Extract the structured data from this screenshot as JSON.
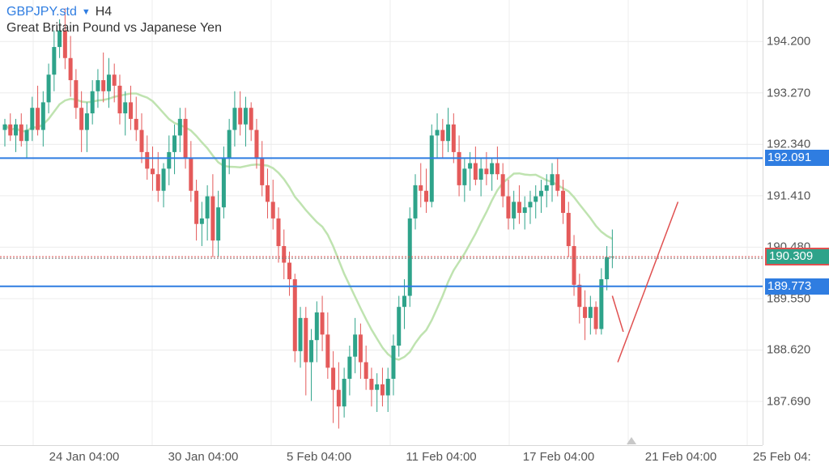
{
  "header": {
    "symbol": "GBPJPY.std",
    "timeframe": "H4",
    "description": "Great Britain Pound vs Japanese Yen"
  },
  "icons": {
    "timeframe_dropdown": "triangle-down-icon",
    "scroll_marker": "triangle-up-icon"
  },
  "colors": {
    "up": "#2ea38a",
    "down": "#e45a5a",
    "ma": "#bfe3b0",
    "hline": "#2f7de1",
    "current": "#e05050",
    "grid": "#ececec"
  },
  "price_axis": {
    "ticks": [
      "194.200",
      "193.270",
      "192.340",
      "191.410",
      "190.480",
      "189.550",
      "188.620",
      "187.690"
    ]
  },
  "time_axis": {
    "labels": [
      "24 Jan 04:00",
      "30 Jan 04:00",
      "5 Feb 04:00",
      "11 Feb 04:00",
      "17 Feb 04:00",
      "21 Feb 04:00",
      "25 Feb 04:"
    ]
  },
  "levels": {
    "upper": "192.091",
    "lower": "189.773",
    "current": "190.309"
  },
  "chart_data": {
    "type": "candlestick",
    "ylim": [
      186.9,
      194.95
    ],
    "yticks": [
      194.2,
      193.27,
      192.34,
      191.41,
      190.48,
      189.55,
      188.62,
      187.69
    ],
    "xlabels": [
      "24 Jan 04:00",
      "30 Jan 04:00",
      "5 Feb 04:00",
      "11 Feb 04:00",
      "17 Feb 04:00",
      "21 Feb 04:00",
      "25 Feb 04:"
    ],
    "horizontal_lines": [
      192.091,
      189.773
    ],
    "current_price": 190.309,
    "ohlc": [
      [
        192.6,
        192.8,
        192.3,
        192.7
      ],
      [
        192.7,
        192.9,
        192.4,
        192.5
      ],
      [
        192.5,
        192.8,
        192.2,
        192.7
      ],
      [
        192.7,
        192.9,
        192.3,
        192.4
      ],
      [
        192.4,
        192.7,
        192.1,
        192.6
      ],
      [
        192.6,
        193.2,
        192.4,
        193.0
      ],
      [
        193.0,
        193.4,
        192.5,
        192.6
      ],
      [
        192.6,
        193.3,
        192.3,
        193.1
      ],
      [
        193.1,
        193.8,
        192.9,
        193.6
      ],
      [
        193.6,
        194.4,
        193.3,
        194.1
      ],
      [
        194.1,
        194.6,
        193.9,
        194.4
      ],
      [
        194.4,
        194.8,
        193.7,
        193.9
      ],
      [
        193.9,
        194.3,
        193.2,
        193.5
      ],
      [
        193.5,
        193.7,
        192.8,
        193.0
      ],
      [
        193.0,
        193.3,
        192.2,
        192.6
      ],
      [
        192.6,
        193.1,
        192.2,
        192.9
      ],
      [
        192.9,
        193.5,
        192.7,
        193.3
      ],
      [
        193.3,
        193.7,
        193.0,
        193.5
      ],
      [
        193.5,
        194.0,
        193.1,
        193.3
      ],
      [
        193.3,
        193.9,
        193.0,
        193.6
      ],
      [
        193.6,
        193.8,
        193.1,
        193.4
      ],
      [
        193.4,
        193.6,
        192.7,
        192.9
      ],
      [
        192.9,
        193.3,
        192.5,
        193.1
      ],
      [
        193.1,
        193.4,
        192.6,
        192.8
      ],
      [
        192.8,
        193.2,
        192.4,
        192.6
      ],
      [
        192.6,
        192.9,
        192.0,
        192.2
      ],
      [
        192.2,
        192.5,
        191.7,
        191.9
      ],
      [
        191.9,
        192.3,
        191.5,
        191.8
      ],
      [
        191.8,
        192.2,
        191.3,
        191.5
      ],
      [
        191.5,
        192.0,
        191.2,
        191.9
      ],
      [
        191.9,
        192.5,
        191.6,
        192.2
      ],
      [
        192.2,
        192.7,
        191.8,
        192.5
      ],
      [
        192.5,
        193.0,
        192.2,
        192.8
      ],
      [
        192.8,
        193.0,
        191.9,
        192.1
      ],
      [
        192.1,
        192.4,
        191.3,
        191.5
      ],
      [
        191.5,
        191.7,
        190.6,
        190.9
      ],
      [
        190.9,
        191.3,
        190.5,
        191.0
      ],
      [
        191.0,
        191.6,
        190.6,
        191.4
      ],
      [
        191.4,
        191.8,
        190.3,
        190.6
      ],
      [
        190.6,
        191.5,
        190.3,
        191.2
      ],
      [
        191.2,
        192.3,
        191.0,
        192.1
      ],
      [
        192.1,
        192.8,
        191.8,
        192.6
      ],
      [
        192.6,
        193.3,
        192.3,
        193.0
      ],
      [
        193.0,
        193.3,
        192.5,
        192.7
      ],
      [
        192.7,
        193.2,
        192.3,
        193.0
      ],
      [
        193.0,
        193.1,
        192.4,
        192.6
      ],
      [
        192.6,
        192.8,
        191.9,
        192.1
      ],
      [
        192.1,
        192.4,
        191.4,
        191.6
      ],
      [
        191.6,
        191.9,
        191.0,
        191.3
      ],
      [
        191.3,
        191.7,
        190.8,
        191.0
      ],
      [
        191.0,
        191.2,
        190.2,
        190.5
      ],
      [
        190.5,
        190.8,
        189.9,
        190.2
      ],
      [
        190.2,
        190.4,
        189.6,
        189.9
      ],
      [
        189.9,
        190.0,
        188.4,
        188.6
      ],
      [
        188.6,
        189.4,
        188.3,
        189.2
      ],
      [
        189.2,
        189.4,
        187.8,
        188.4
      ],
      [
        188.4,
        189.0,
        187.7,
        188.8
      ],
      [
        188.8,
        189.5,
        188.4,
        189.3
      ],
      [
        189.3,
        189.6,
        188.6,
        188.9
      ],
      [
        188.9,
        189.3,
        188.1,
        188.3
      ],
      [
        188.3,
        188.6,
        187.3,
        187.9
      ],
      [
        187.9,
        188.4,
        187.2,
        187.6
      ],
      [
        187.6,
        188.3,
        187.4,
        188.1
      ],
      [
        188.1,
        188.7,
        187.8,
        188.5
      ],
      [
        188.5,
        189.2,
        188.2,
        188.9
      ],
      [
        188.9,
        189.1,
        188.1,
        188.4
      ],
      [
        188.4,
        188.7,
        187.9,
        188.1
      ],
      [
        188.1,
        188.3,
        187.6,
        187.9
      ],
      [
        187.9,
        188.2,
        187.5,
        188.0
      ],
      [
        188.0,
        188.3,
        187.6,
        187.8
      ],
      [
        187.8,
        188.3,
        187.5,
        188.1
      ],
      [
        188.1,
        188.9,
        187.8,
        188.7
      ],
      [
        188.7,
        189.6,
        188.5,
        189.4
      ],
      [
        189.4,
        189.9,
        189.0,
        189.6
      ],
      [
        189.6,
        191.2,
        189.4,
        191.0
      ],
      [
        191.0,
        191.8,
        190.8,
        191.6
      ],
      [
        191.6,
        192.0,
        191.2,
        191.5
      ],
      [
        191.5,
        191.9,
        191.1,
        191.3
      ],
      [
        191.3,
        192.7,
        191.2,
        192.5
      ],
      [
        192.5,
        192.9,
        192.1,
        192.6
      ],
      [
        192.6,
        192.8,
        192.1,
        192.4
      ],
      [
        192.4,
        193.0,
        192.2,
        192.7
      ],
      [
        192.7,
        192.9,
        192.0,
        192.2
      ],
      [
        192.2,
        192.5,
        191.4,
        191.6
      ],
      [
        191.6,
        192.1,
        191.3,
        191.9
      ],
      [
        191.9,
        192.2,
        191.5,
        192.0
      ],
      [
        192.0,
        192.3,
        191.6,
        191.7
      ],
      [
        191.7,
        192.1,
        191.4,
        191.9
      ],
      [
        191.9,
        192.2,
        191.6,
        191.8
      ],
      [
        191.8,
        192.1,
        191.5,
        192.0
      ],
      [
        192.0,
        192.3,
        191.7,
        191.8
      ],
      [
        191.8,
        192.0,
        191.2,
        191.4
      ],
      [
        191.4,
        191.7,
        190.8,
        191.0
      ],
      [
        191.0,
        191.5,
        190.8,
        191.3
      ],
      [
        191.3,
        191.6,
        190.9,
        191.1
      ],
      [
        191.1,
        191.4,
        190.8,
        191.2
      ],
      [
        191.2,
        191.5,
        190.9,
        191.3
      ],
      [
        191.3,
        191.6,
        191.0,
        191.4
      ],
      [
        191.4,
        191.7,
        191.1,
        191.5
      ],
      [
        191.5,
        191.8,
        191.2,
        191.6
      ],
      [
        191.6,
        192.0,
        191.3,
        191.8
      ],
      [
        191.8,
        192.1,
        191.4,
        191.5
      ],
      [
        191.5,
        191.7,
        190.9,
        191.1
      ],
      [
        191.1,
        191.3,
        190.3,
        190.5
      ],
      [
        190.5,
        190.7,
        189.6,
        189.8
      ],
      [
        189.8,
        190.0,
        189.1,
        189.4
      ],
      [
        189.4,
        189.7,
        188.8,
        189.2
      ],
      [
        189.2,
        189.6,
        188.9,
        189.4
      ],
      [
        189.4,
        189.5,
        188.9,
        189.0
      ],
      [
        189.0,
        190.1,
        188.9,
        189.9
      ],
      [
        189.9,
        190.5,
        189.7,
        190.3
      ],
      [
        190.3,
        190.8,
        190.1,
        190.309
      ]
    ],
    "ma_period": 20,
    "drawings": [
      {
        "type": "trendline",
        "from": [
          111,
          189.6
        ],
        "to": [
          113,
          188.95
        ]
      },
      {
        "type": "trendline",
        "from": [
          112,
          188.4
        ],
        "to": [
          123,
          191.3
        ]
      }
    ]
  }
}
